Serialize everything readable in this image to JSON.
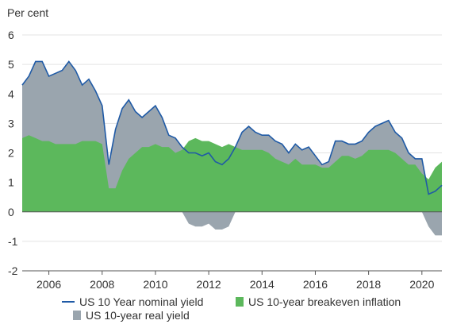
{
  "chart_data": {
    "type": "area",
    "ylabel": "Per cent",
    "ylim": [
      -2,
      6
    ],
    "yticks": [
      "6",
      "5",
      "4",
      "3",
      "2",
      "1",
      "0",
      "-1",
      "-2"
    ],
    "xlim": [
      2005.0,
      2020.75
    ],
    "xticks": [
      "2006",
      "2008",
      "2010",
      "2012",
      "2014",
      "2016",
      "2018",
      "2020"
    ],
    "x": [
      2005.0,
      2005.25,
      2005.5,
      2005.75,
      2006.0,
      2006.25,
      2006.5,
      2006.75,
      2007.0,
      2007.25,
      2007.5,
      2007.75,
      2008.0,
      2008.25,
      2008.5,
      2008.75,
      2009.0,
      2009.25,
      2009.5,
      2009.75,
      2010.0,
      2010.25,
      2010.5,
      2010.75,
      2011.0,
      2011.25,
      2011.5,
      2011.75,
      2012.0,
      2012.25,
      2012.5,
      2012.75,
      2013.0,
      2013.25,
      2013.5,
      2013.75,
      2014.0,
      2014.25,
      2014.5,
      2014.75,
      2015.0,
      2015.25,
      2015.5,
      2015.75,
      2016.0,
      2016.25,
      2016.5,
      2016.75,
      2017.0,
      2017.25,
      2017.5,
      2017.75,
      2018.0,
      2018.25,
      2018.5,
      2018.75,
      2019.0,
      2019.25,
      2019.5,
      2019.75,
      2020.0,
      2020.25,
      2020.5,
      2020.75
    ],
    "series": [
      {
        "name": "US 10 Year nominal yield",
        "color": "#1f5aa6",
        "values": [
          4.3,
          4.6,
          5.1,
          5.1,
          4.6,
          4.7,
          4.8,
          5.1,
          4.8,
          4.3,
          4.5,
          4.1,
          3.6,
          1.6,
          2.8,
          3.5,
          3.8,
          3.4,
          3.2,
          3.4,
          3.6,
          3.2,
          2.6,
          2.5,
          2.2,
          2.0,
          2.0,
          1.9,
          2.0,
          1.7,
          1.6,
          1.8,
          2.2,
          2.7,
          2.9,
          2.7,
          2.6,
          2.6,
          2.4,
          2.3,
          2.0,
          2.3,
          2.1,
          2.2,
          1.9,
          1.6,
          1.7,
          2.4,
          2.4,
          2.3,
          2.3,
          2.4,
          2.7,
          2.9,
          3.0,
          3.1,
          2.7,
          2.5,
          2.0,
          1.8,
          1.8,
          0.6,
          0.7,
          0.9
        ]
      },
      {
        "name": "US 10-year breakeven inflation",
        "color": "#5cb85c",
        "values": [
          2.5,
          2.6,
          2.5,
          2.4,
          2.4,
          2.3,
          2.3,
          2.3,
          2.3,
          2.4,
          2.4,
          2.4,
          2.3,
          0.8,
          0.8,
          1.4,
          1.8,
          2.0,
          2.2,
          2.2,
          2.3,
          2.2,
          2.2,
          2.0,
          2.1,
          2.4,
          2.5,
          2.4,
          2.4,
          2.3,
          2.2,
          2.3,
          2.2,
          2.1,
          2.1,
          2.1,
          2.1,
          2.0,
          1.8,
          1.7,
          1.6,
          1.8,
          1.6,
          1.6,
          1.6,
          1.5,
          1.5,
          1.7,
          1.9,
          1.9,
          1.8,
          1.9,
          2.1,
          2.1,
          2.1,
          2.1,
          2.0,
          1.8,
          1.6,
          1.6,
          1.3,
          1.1,
          1.5,
          1.7
        ]
      },
      {
        "name": "US 10-year real yield",
        "color": "#9aa5ae",
        "values": [
          1.8,
          2.0,
          2.6,
          2.7,
          2.2,
          2.4,
          2.5,
          2.8,
          2.5,
          1.9,
          2.1,
          1.7,
          1.3,
          0.8,
          2.0,
          2.1,
          2.0,
          1.4,
          1.0,
          1.2,
          1.3,
          1.0,
          0.4,
          0.5,
          0.1,
          -0.4,
          -0.5,
          -0.5,
          -0.4,
          -0.6,
          -0.6,
          -0.5,
          0.0,
          0.6,
          0.8,
          0.6,
          0.5,
          0.6,
          0.6,
          0.6,
          0.4,
          0.5,
          0.5,
          0.6,
          0.3,
          0.1,
          0.2,
          0.7,
          0.5,
          0.4,
          0.5,
          0.5,
          0.6,
          0.8,
          0.9,
          1.0,
          0.7,
          0.7,
          0.4,
          0.2,
          0.5,
          -0.5,
          -0.8,
          -0.8
        ]
      }
    ]
  }
}
